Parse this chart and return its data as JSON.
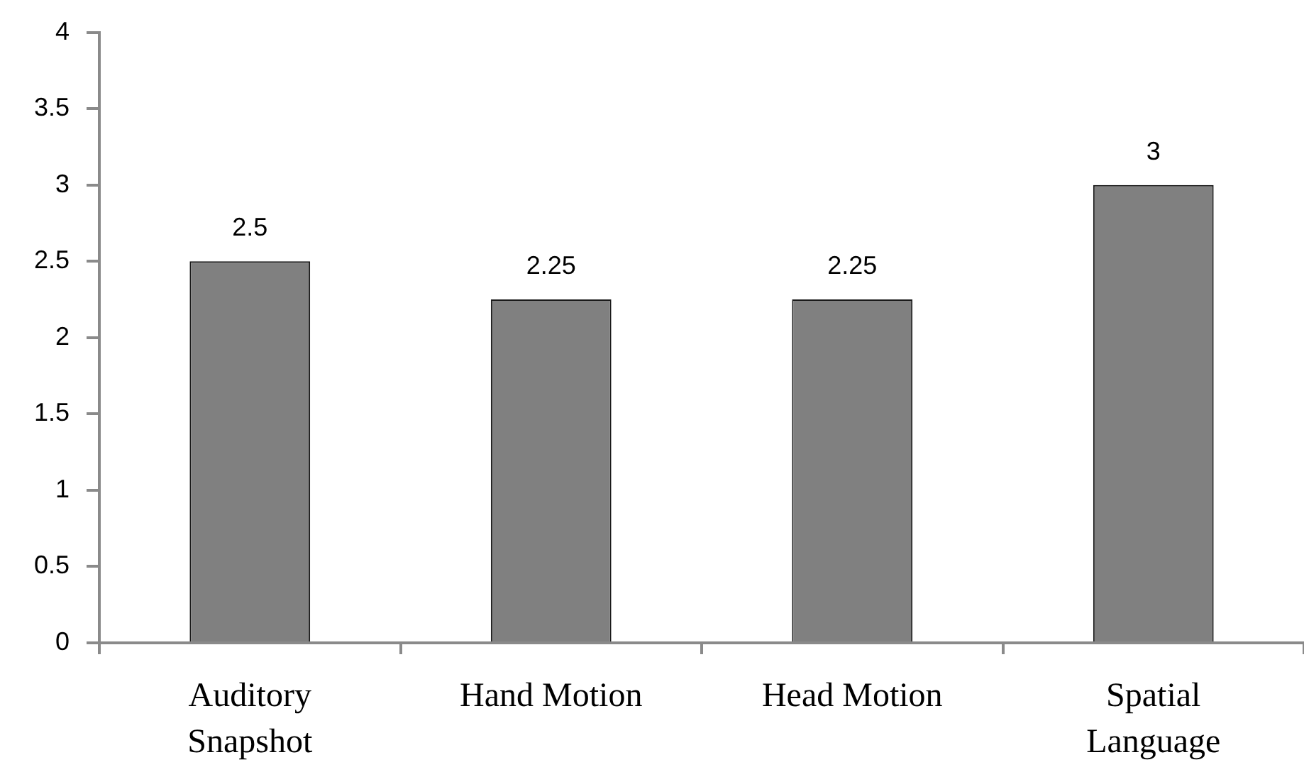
{
  "chart_data": {
    "type": "bar",
    "categories": [
      "Auditory Snapshot",
      "Hand Motion",
      "Head Motion",
      "Spatial Language"
    ],
    "values": [
      2.5,
      2.25,
      2.25,
      3
    ],
    "color": "#808080",
    "ylim": [
      0,
      4
    ],
    "yticks": [
      0,
      0.5,
      1,
      1.5,
      2,
      2.5,
      3,
      3.5,
      4
    ],
    "grid": false,
    "data_labels": true
  }
}
